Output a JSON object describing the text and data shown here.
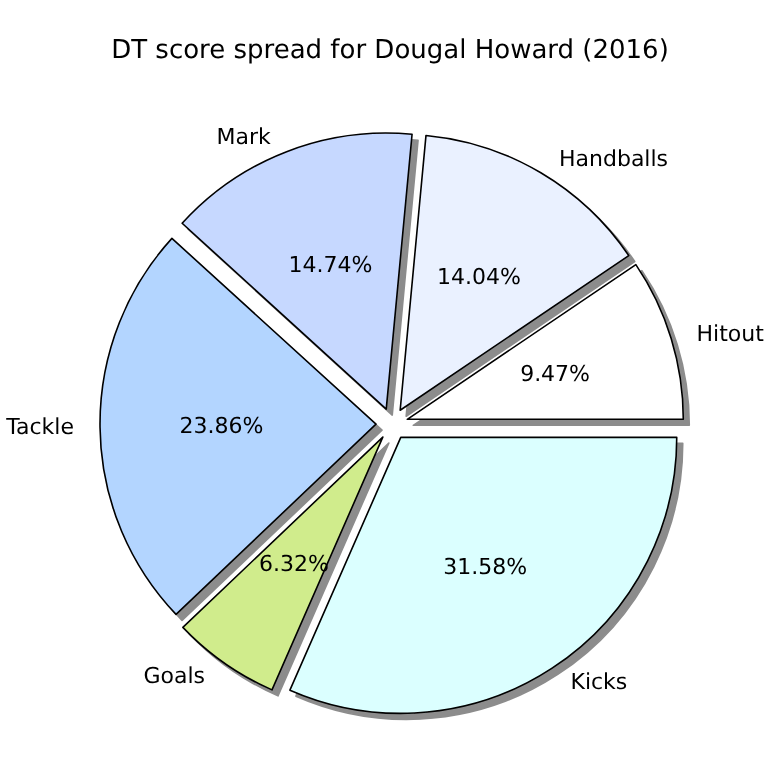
{
  "chart_data": {
    "type": "pie",
    "title": "DT score spread for Dougal Howard (2016)",
    "categories": [
      "Hitout",
      "Handballs",
      "Mark",
      "Tackle",
      "Goals",
      "Kicks"
    ],
    "values": [
      9.47,
      14.04,
      14.74,
      23.86,
      6.32,
      31.58
    ],
    "value_labels": [
      "9.47%",
      "14.04%",
      "14.74%",
      "23.86%",
      "6.32%",
      "31.58%"
    ],
    "colors": [
      "#ffffff",
      "#eaf1ff",
      "#c6d8ff",
      "#b3d5ff",
      "#d0ec8c",
      "#dbffff"
    ],
    "legend": false
  }
}
